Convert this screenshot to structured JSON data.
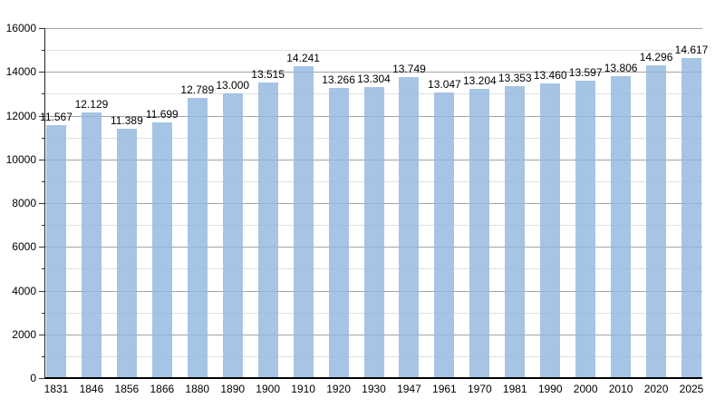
{
  "chart_data": {
    "type": "bar",
    "title": "",
    "xlabel": "",
    "ylabel": "",
    "categories": [
      "1831",
      "1846",
      "1856",
      "1866",
      "1880",
      "1890",
      "1900",
      "1910",
      "1920",
      "1930",
      "1947",
      "1961",
      "1970",
      "1981",
      "1990",
      "2000",
      "2010",
      "2020",
      "2025"
    ],
    "values": [
      11567,
      12129,
      11389,
      11699,
      12789,
      13000,
      13515,
      14241,
      13266,
      13304,
      13749,
      13047,
      13204,
      13353,
      13460,
      13597,
      13806,
      14296,
      14617
    ],
    "value_labels": [
      "11.567",
      "12.129",
      "11.389",
      "11.699",
      "12.789",
      "13.000",
      "13.515",
      "14.241",
      "13.266",
      "13.304",
      "13.749",
      "13.047",
      "13.204",
      "13.353",
      "13.460",
      "13.597",
      "13.806",
      "14.296",
      "14.617"
    ],
    "ylim": [
      0,
      16000
    ],
    "y_major_step": 2000,
    "y_minor_step": 1000,
    "y_tick_labels": [
      "0",
      "2000",
      "4000",
      "6000",
      "8000",
      "10000",
      "12000",
      "14000",
      "16000"
    ],
    "grid": "horizontal-on",
    "legend": "none",
    "bar_color": "#a7c5e4",
    "major_grid_color": "#a3a3a3",
    "minor_grid_color": "#e0e0e0",
    "axis_color": "#000000",
    "label_color": "#000000"
  }
}
